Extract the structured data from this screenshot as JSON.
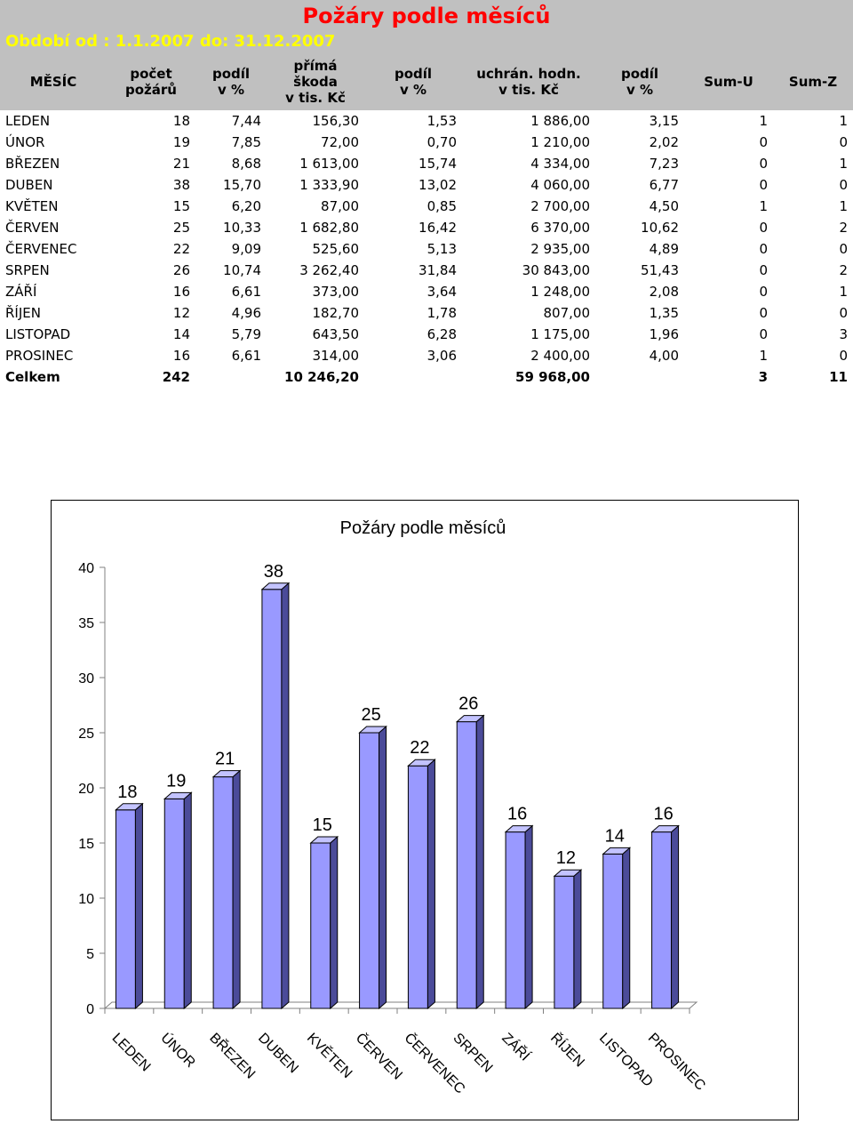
{
  "header": {
    "title": "Požáry podle měsíců",
    "period": "Období od : 1.1.2007 do: 31.12.2007"
  },
  "table": {
    "columns": [
      "MĚSÍC",
      "počet\npožárů",
      "podíl\nv %",
      "přímá\nškoda\nv tis. Kč",
      "podíl\nv %",
      "uchrán. hodn.\nv tis. Kč",
      "podíl\nv %",
      "Sum-U",
      "Sum-Z"
    ],
    "rows": [
      [
        "LEDEN",
        "18",
        "7,44",
        "156,30",
        "1,53",
        "1 886,00",
        "3,15",
        "1",
        "1"
      ],
      [
        "ÚNOR",
        "19",
        "7,85",
        "72,00",
        "0,70",
        "1 210,00",
        "2,02",
        "0",
        "0"
      ],
      [
        "BŘEZEN",
        "21",
        "8,68",
        "1 613,00",
        "15,74",
        "4 334,00",
        "7,23",
        "0",
        "1"
      ],
      [
        "DUBEN",
        "38",
        "15,70",
        "1 333,90",
        "13,02",
        "4 060,00",
        "6,77",
        "0",
        "0"
      ],
      [
        "KVĚTEN",
        "15",
        "6,20",
        "87,00",
        "0,85",
        "2 700,00",
        "4,50",
        "1",
        "1"
      ],
      [
        "ČERVEN",
        "25",
        "10,33",
        "1 682,80",
        "16,42",
        "6 370,00",
        "10,62",
        "0",
        "2"
      ],
      [
        "ČERVENEC",
        "22",
        "9,09",
        "525,60",
        "5,13",
        "2 935,00",
        "4,89",
        "0",
        "0"
      ],
      [
        "SRPEN",
        "26",
        "10,74",
        "3 262,40",
        "31,84",
        "30 843,00",
        "51,43",
        "0",
        "2"
      ],
      [
        "ZÁŘÍ",
        "16",
        "6,61",
        "373,00",
        "3,64",
        "1 248,00",
        "2,08",
        "0",
        "1"
      ],
      [
        "ŘÍJEN",
        "12",
        "4,96",
        "182,70",
        "1,78",
        "807,00",
        "1,35",
        "0",
        "0"
      ],
      [
        "LISTOPAD",
        "14",
        "5,79",
        "643,50",
        "6,28",
        "1 175,00",
        "1,96",
        "0",
        "3"
      ],
      [
        "PROSINEC",
        "16",
        "6,61",
        "314,00",
        "3,06",
        "2 400,00",
        "4,00",
        "1",
        "0"
      ]
    ],
    "total": [
      "Celkem",
      "242",
      "",
      "10 246,20",
      "",
      "59 968,00",
      "",
      "3",
      "11"
    ]
  },
  "colors": {
    "header_band": "#c0c0c0",
    "title": "#ff0000",
    "period": "#ffff00",
    "bar_front": "#9999ff",
    "bar_side": "#4b4b99",
    "bar_top": "#c3c3ff"
  },
  "chart_data": {
    "type": "bar",
    "title": "Požáry podle měsíců",
    "categories": [
      "LEDEN",
      "ÚNOR",
      "BŘEZEN",
      "DUBEN",
      "KVĚTEN",
      "ČERVEN",
      "ČERVENEC",
      "SRPEN",
      "ZÁŘÍ",
      "ŘÍJEN",
      "LISTOPAD",
      "PROSINEC"
    ],
    "values": [
      18,
      19,
      21,
      38,
      15,
      25,
      22,
      26,
      16,
      12,
      14,
      16
    ],
    "yticks": [
      0,
      5,
      10,
      15,
      20,
      25,
      30,
      35,
      40
    ],
    "ylim": [
      0,
      40
    ],
    "grid": false,
    "legend": "none",
    "style": "3d-bar",
    "data_labels": true
  }
}
